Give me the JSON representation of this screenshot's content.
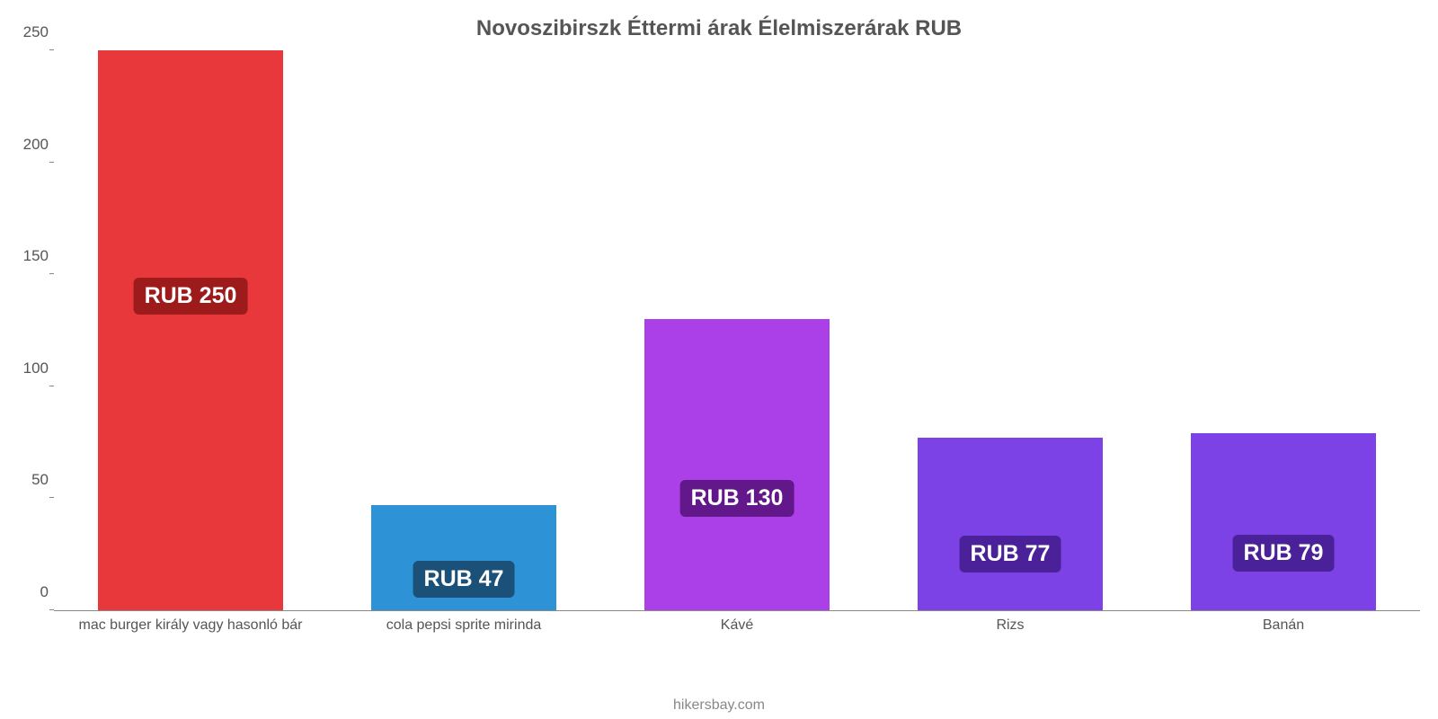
{
  "chart": {
    "type": "bar",
    "title": "Novoszibirszk Éttermi árak Élelmiszerárak RUB",
    "title_fontsize": 24,
    "title_color": "#555555",
    "background_color": "#ffffff",
    "axis_font_color": "#555555",
    "axis_line_color": "#888888",
    "ylim": [
      0,
      250
    ],
    "ytick_step": 50,
    "ytick_fontsize": 17,
    "xtick_fontsize": 16,
    "yticks": [
      {
        "value": 0,
        "label": "0"
      },
      {
        "value": 50,
        "label": "50"
      },
      {
        "value": 100,
        "label": "100"
      },
      {
        "value": 150,
        "label": "150"
      },
      {
        "value": 200,
        "label": "200"
      },
      {
        "value": 250,
        "label": "250"
      }
    ],
    "bar_width_pct": 13.6,
    "slot_width_pct": 20,
    "valuebox_fontsize": 25,
    "bars": [
      {
        "label": "mac burger király vagy hasonló bár",
        "value": 250,
        "value_text": "RUB 250",
        "bar_color": "#e8383c",
        "valuebox_bg": "#9e1b1b",
        "valuebox_y": 132
      },
      {
        "label": "cola pepsi sprite mirinda",
        "value": 47,
        "value_text": "RUB 47",
        "bar_color": "#2d92d6",
        "valuebox_bg": "#1b5179",
        "valuebox_y": 30
      },
      {
        "label": "Kávé",
        "value": 130,
        "value_text": "RUB 130",
        "bar_color": "#ab40e8",
        "valuebox_bg": "#62178b",
        "valuebox_y": 80
      },
      {
        "label": "Rizs",
        "value": 77,
        "value_text": "RUB 77",
        "bar_color": "#7d42e6",
        "valuebox_bg": "#4a2198",
        "valuebox_y": 55
      },
      {
        "label": "Banán",
        "value": 79,
        "value_text": "RUB 79",
        "bar_color": "#7d42e6",
        "valuebox_bg": "#4a2198",
        "valuebox_y": 55
      }
    ],
    "credit": "hikersbay.com",
    "credit_fontsize": 16,
    "credit_color": "#888888"
  }
}
